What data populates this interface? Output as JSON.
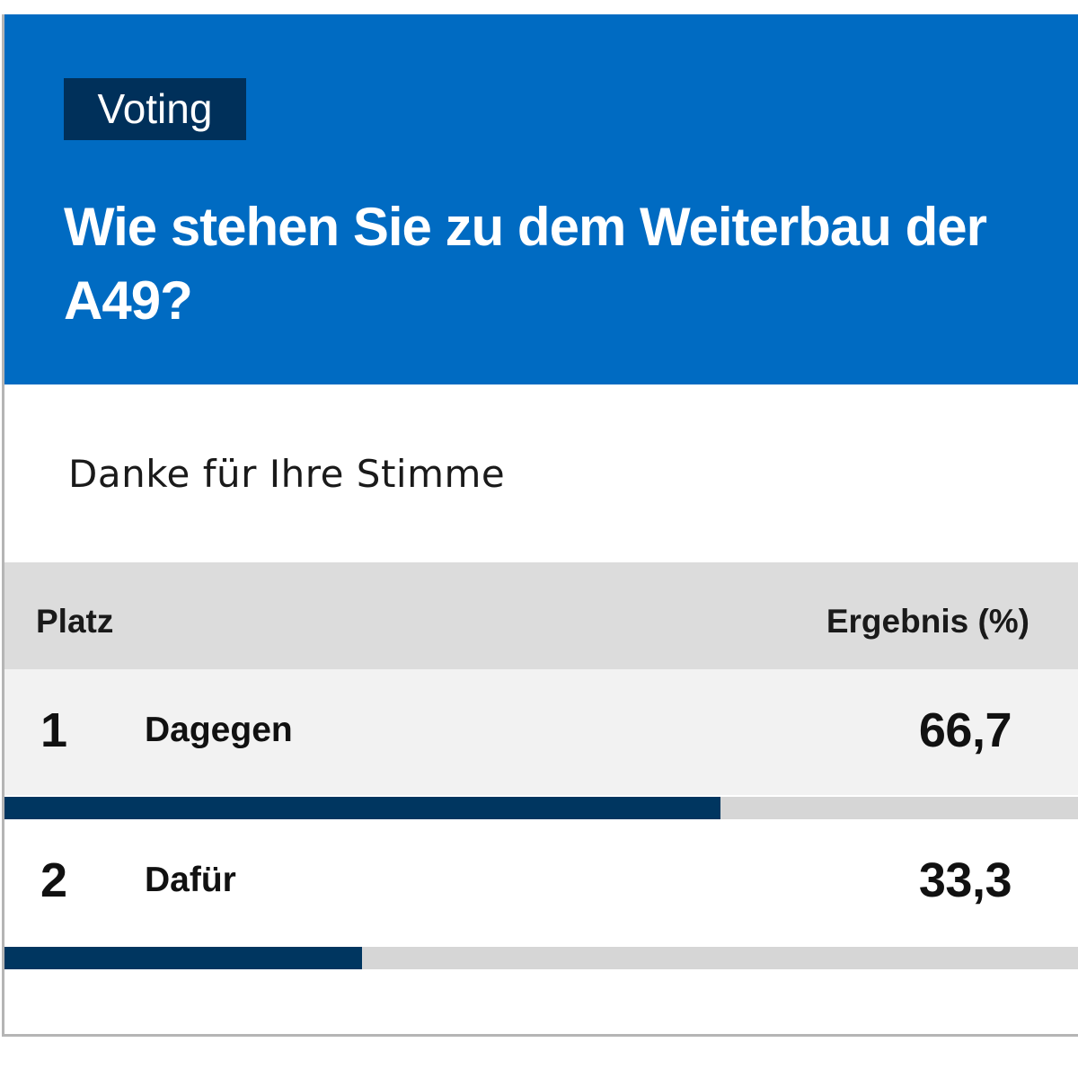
{
  "colors": {
    "header_bg": "#006bc2",
    "tag_bg": "#00305a",
    "table_head_bg": "#dcdcdc",
    "row_highlight_bg": "#f2f2f2",
    "bar_fill": "#003660",
    "bar_track": "#d6d6d6"
  },
  "header": {
    "tag": "Voting",
    "question": "Wie stehen Sie zu dem Weiterbau der A49?"
  },
  "message": "Danke für Ihre Stimme",
  "table": {
    "col_rank": "Platz",
    "col_result": "Ergebnis (%)",
    "rows": [
      {
        "rank": "1",
        "label": "Dagegen",
        "value": "66,7",
        "percent": 66.7
      },
      {
        "rank": "2",
        "label": "Dafür",
        "value": "33,3",
        "percent": 33.3
      }
    ]
  }
}
